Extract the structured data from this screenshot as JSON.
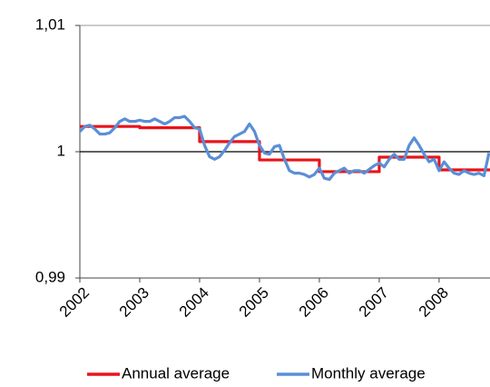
{
  "chart_data": {
    "type": "line",
    "xlim": [
      2002,
      2008.85
    ],
    "xticks": [
      2002,
      2003,
      2004,
      2005,
      2006,
      2007,
      2008
    ],
    "ylim": [
      0.99,
      1.01
    ],
    "yticks": [
      {
        "value": 0.99,
        "label": "0,99"
      },
      1,
      {
        "value": 1.01,
        "label": "1,01"
      }
    ],
    "hline": 1,
    "series": [
      {
        "name": "Annual average",
        "color": "#e8141b",
        "x": [
          2002,
          2003,
          2003,
          2004,
          2004,
          2005,
          2005,
          2006,
          2006,
          2007,
          2007,
          2008,
          2008,
          2008.85
        ],
        "values": [
          1.002,
          1.002,
          1.0019,
          1.0019,
          1.0008,
          1.0008,
          0.99935,
          0.99935,
          0.99842,
          0.99842,
          0.99957,
          0.99957,
          0.99856,
          0.99856
        ]
      },
      {
        "name": "Monthly average",
        "color": "#5b8fd6",
        "x": [
          2002,
          2002.083,
          2002.167,
          2002.25,
          2002.333,
          2002.417,
          2002.5,
          2002.583,
          2002.667,
          2002.75,
          2002.833,
          2002.917,
          2003,
          2003.083,
          2003.167,
          2003.25,
          2003.333,
          2003.417,
          2003.5,
          2003.583,
          2003.667,
          2003.75,
          2003.833,
          2003.917,
          2004,
          2004.083,
          2004.167,
          2004.25,
          2004.333,
          2004.417,
          2004.5,
          2004.583,
          2004.667,
          2004.75,
          2004.833,
          2004.917,
          2005,
          2005.083,
          2005.167,
          2005.25,
          2005.333,
          2005.417,
          2005.5,
          2005.583,
          2005.667,
          2005.75,
          2005.833,
          2005.917,
          2006,
          2006.083,
          2006.167,
          2006.25,
          2006.333,
          2006.417,
          2006.5,
          2006.583,
          2006.667,
          2006.75,
          2006.833,
          2006.917,
          2007,
          2007.083,
          2007.167,
          2007.25,
          2007.333,
          2007.417,
          2007.5,
          2007.583,
          2007.667,
          2007.75,
          2007.833,
          2007.917,
          2008,
          2008.083,
          2008.167,
          2008.25,
          2008.333,
          2008.417,
          2008.5,
          2008.583,
          2008.667,
          2008.75,
          2008.833
        ],
        "values": [
          1.0016,
          1.002,
          1.0021,
          1.0018,
          1.0014,
          1.0014,
          1.0015,
          1.0019,
          1.0024,
          1.0026,
          1.0024,
          1.0024,
          1.0025,
          1.0024,
          1.0024,
          1.0026,
          1.0024,
          1.0022,
          1.0024,
          1.0027,
          1.0027,
          1.0028,
          1.0024,
          1.0019,
          1.0018,
          1.0005,
          0.9996,
          0.9994,
          0.9996,
          1.0001,
          1.0007,
          1.0012,
          1.0014,
          1.0016,
          1.0022,
          1.0016,
          1.0005,
          0.9999,
          0.9998,
          1.0004,
          1.0005,
          0.9994,
          0.9985,
          0.9983,
          0.9983,
          0.9982,
          0.998,
          0.9982,
          0.9987,
          0.9979,
          0.9978,
          0.9983,
          0.9985,
          0.9987,
          0.9983,
          0.9985,
          0.9985,
          0.9983,
          0.9986,
          0.9989,
          0.9991,
          0.9988,
          0.9994,
          0.9998,
          0.9994,
          0.9994,
          1.0005,
          1.0011,
          1.0005,
          0.9998,
          0.9992,
          0.9994,
          0.9985,
          0.9992,
          0.9987,
          0.9983,
          0.9982,
          0.9985,
          0.9983,
          0.9982,
          0.9983,
          0.9981,
          0.9999
        ]
      }
    ]
  }
}
